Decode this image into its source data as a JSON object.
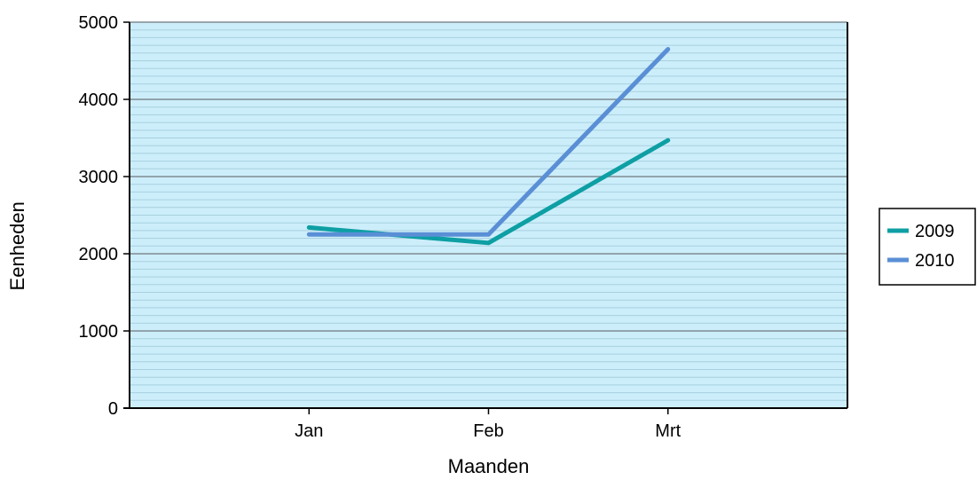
{
  "chart_data": {
    "type": "line",
    "title": "",
    "xlabel": "Maanden",
    "ylabel": "Eenheden",
    "categories": [
      "Jan",
      "Feb",
      "Mrt"
    ],
    "ylim": [
      0,
      5000
    ],
    "y_ticks": [
      "0",
      "1000",
      "2000",
      "3000",
      "4000",
      "5000"
    ],
    "grid": true,
    "legend_position": "right",
    "plot_background": "#cceefa",
    "series": [
      {
        "name": "2009",
        "color": "#0d9fa4",
        "values": [
          2340,
          2140,
          3470
        ]
      },
      {
        "name": "2010",
        "color": "#5a8fd6",
        "values": [
          2250,
          2250,
          4650
        ]
      }
    ]
  }
}
